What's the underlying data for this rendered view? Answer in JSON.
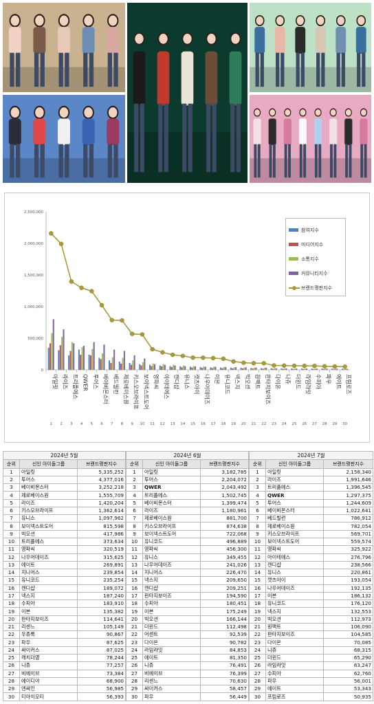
{
  "photos": [
    {
      "name": "photo-group-a",
      "bg": "#c9b28f",
      "people": 5,
      "palette": [
        "#f2d0c4",
        "#7b5a48",
        "#e8c9b8",
        "#6d8fb5",
        "#d8a7a0"
      ]
    },
    {
      "name": "photo-group-b",
      "bg": "#5b86c8",
      "people": 5,
      "palette": [
        "#2d2d3a",
        "#e24848",
        "#f0f0f0",
        "#3b64b3",
        "#9b3b5f"
      ]
    },
    {
      "name": "photo-group-c",
      "bg": "#0d3a2e",
      "people": 5,
      "palette": [
        "#1b1b1b",
        "#c0392b",
        "#e9e4d5",
        "#6b4e35",
        "#2e7d5a"
      ]
    },
    {
      "name": "photo-group-d",
      "bg": "#bde1c7",
      "people": 6,
      "palette": [
        "#3a6e9c",
        "#e8b6a4",
        "#2b2b2b",
        "#d9c7b5",
        "#6f8fb0"
      ]
    },
    {
      "name": "photo-group-e",
      "bg": "#e8a9c3",
      "people": 8,
      "palette": [
        "#f4e1e6",
        "#2b2b2b",
        "#d77aa0",
        "#fafafa",
        "#b0d0f0"
      ]
    }
  ],
  "chart_data": {
    "type": "bar",
    "title": "",
    "xlabel": "",
    "ylabel": "",
    "ylim": [
      0,
      2500000
    ],
    "yticks": [
      0,
      500000,
      1000000,
      1500000,
      2000000,
      2500000
    ],
    "ytick_labels": [
      "0",
      "500,000",
      "1,000,000",
      "1,500,000",
      "2,000,000",
      "2,500,000"
    ],
    "grid": false,
    "legend_position": "top-right",
    "categories": [
      "아일릿",
      "라이즈",
      "트리플에스",
      "QWER",
      "투어스",
      "베이비몬스터",
      "베드빌런",
      "제로베이스원",
      "키스오브라이프",
      "보이넥스트도어",
      "영파씨",
      "아이테에스",
      "캔디샵",
      "유니스",
      "캣츠아이",
      "나우어데이즈",
      "이븐",
      "유니코드",
      "넥스지",
      "빅오션",
      "원팩트",
      "판타지보이즈",
      "다이온",
      "니쥬",
      "더윈드",
      "라임라잇",
      "수피아",
      "파우",
      "에이트",
      "프림로즈"
    ],
    "ranks": [
      1,
      2,
      3,
      4,
      5,
      6,
      7,
      8,
      9,
      10,
      11,
      12,
      13,
      14,
      15,
      16,
      17,
      18,
      19,
      20,
      21,
      22,
      23,
      24,
      25,
      26,
      27,
      28,
      29,
      30
    ],
    "series": [
      {
        "name": "참여지수",
        "kind": "bar",
        "color": "#4f81bd",
        "values": [
          350000,
          310000,
          230000,
          320000,
          240000,
          190000,
          150000,
          130000,
          110000,
          90000,
          80000,
          70000,
          60000,
          55000,
          50000,
          45000,
          40000,
          38000,
          35000,
          33000,
          30000,
          28000,
          26000,
          25000,
          24000,
          23000,
          22000,
          21000,
          20000,
          19000
        ]
      },
      {
        "name": "미디어지수",
        "kind": "bar",
        "color": "#c0504d",
        "values": [
          420000,
          390000,
          300000,
          240000,
          230000,
          170000,
          110000,
          100000,
          80000,
          70000,
          60000,
          55000,
          45000,
          40000,
          35000,
          30000,
          28000,
          26000,
          24000,
          22000,
          20000,
          18000,
          16000,
          15000,
          14000,
          13000,
          12000,
          11000,
          10000,
          9000
        ]
      },
      {
        "name": "소통지수",
        "kind": "bar",
        "color": "#9bbb59",
        "values": [
          580000,
          520000,
          440000,
          360000,
          330000,
          260000,
          200000,
          190000,
          150000,
          120000,
          100000,
          90000,
          80000,
          70000,
          60000,
          55000,
          50000,
          45000,
          40000,
          38000,
          35000,
          33000,
          30000,
          28000,
          26000,
          25000,
          24000,
          23000,
          22000,
          21000
        ]
      },
      {
        "name": "커뮤니티지수",
        "kind": "bar",
        "color": "#8064a2",
        "values": [
          800000,
          640000,
          420000,
          380000,
          440000,
          400000,
          320000,
          300000,
          230000,
          180000,
          90000,
          80000,
          70000,
          60000,
          55000,
          50000,
          48000,
          45000,
          42000,
          40000,
          37000,
          35000,
          25000,
          23000,
          22000,
          21000,
          20000,
          19000,
          18000,
          17000
        ]
      },
      {
        "name": "브랜드평판지수",
        "kind": "line",
        "color": "#a89a3a",
        "values": [
          2158340,
          1991646,
          1396545,
          1297375,
          1244609,
          1022641,
          786912,
          782054,
          569701,
          559574,
          325922,
          276796,
          238566,
          220861,
          193054,
          192135,
          186132,
          176120,
          132553,
          112973,
          106090,
          104585,
          70085,
          68315,
          65290,
          63247,
          62760,
          56001,
          53343,
          50935
        ]
      }
    ]
  },
  "tables": [
    {
      "id": "may",
      "month": "2024년 5월",
      "headers": [
        "순위",
        "신인 아이돌그룹",
        "브랜드평판지수"
      ],
      "rows": [
        [
          "1",
          "아일릿",
          "5,335,252"
        ],
        [
          "2",
          "투어스",
          "4,377,016"
        ],
        [
          "3",
          "베이비몬스터",
          "3,252,218"
        ],
        [
          "4",
          "제로베이스원",
          "1,555,709"
        ],
        [
          "5",
          "라이즈",
          "1,420,204"
        ],
        [
          "6",
          "키스오브라이프",
          "1,362,614"
        ],
        [
          "7",
          "유니스",
          "1,097,962"
        ],
        [
          "8",
          "보이넥스트도어",
          "815,598"
        ],
        [
          "9",
          "빅오션",
          "417,986"
        ],
        [
          "10",
          "트리플에스",
          "373,634"
        ],
        [
          "11",
          "영파씨",
          "320,519"
        ],
        [
          "12",
          "나우어데이즈",
          "315,625"
        ],
        [
          "13",
          "에이트",
          "269,891"
        ],
        [
          "14",
          "지니어스",
          "239,854"
        ],
        [
          "15",
          "유니코드",
          "235,254"
        ],
        [
          "16",
          "캔디샵",
          "189,072"
        ],
        [
          "17",
          "넥스지",
          "187,240"
        ],
        [
          "18",
          "수피아",
          "183,910"
        ],
        [
          "19",
          "이븐",
          "135,382"
        ],
        [
          "20",
          "판타지보이즈",
          "114,641"
        ],
        [
          "21",
          "리센느",
          "105,149"
        ],
        [
          "22",
          "우쥬록",
          "90,867"
        ],
        [
          "23",
          "파우",
          "87,625"
        ],
        [
          "24",
          "싸이커스",
          "87,025"
        ],
        [
          "25",
          "캐치더영",
          "78,244"
        ],
        [
          "26",
          "니쥬",
          "77,257"
        ],
        [
          "27",
          "비에이브",
          "73,384"
        ],
        [
          "28",
          "에이디야",
          "68,900"
        ],
        [
          "29",
          "엔싸인",
          "56,985"
        ],
        [
          "30",
          "티아이오티",
          "56,393"
        ]
      ]
    },
    {
      "id": "jun",
      "month": "2024년 6월",
      "headers": [
        "순위",
        "신인 아이돌그룹",
        "브랜드평판지수"
      ],
      "rows": [
        [
          "1",
          "아일릿",
          "3,182,785"
        ],
        [
          "2",
          "투어스",
          "2,204,072"
        ],
        [
          "3",
          "QWER",
          "2,043,492"
        ],
        [
          "4",
          "트리플에스",
          "1,502,745"
        ],
        [
          "5",
          "베이비몬스터",
          "1,399,474"
        ],
        [
          "6",
          "라이즈",
          "1,180,961"
        ],
        [
          "7",
          "제로베이스원",
          "881,700"
        ],
        [
          "8",
          "키스오브라이프",
          "874,638"
        ],
        [
          "9",
          "보이넥스트도어",
          "722,068"
        ],
        [
          "10",
          "유니코드",
          "496,889"
        ],
        [
          "11",
          "영파씨",
          "456,300"
        ],
        [
          "12",
          "유니스",
          "349,455"
        ],
        [
          "13",
          "나우어데이즈",
          "241,026"
        ],
        [
          "14",
          "지니어스",
          "226,470"
        ],
        [
          "15",
          "넥스지",
          "209,650"
        ],
        [
          "16",
          "캔디샵",
          "209,251"
        ],
        [
          "17",
          "판타지보이즈",
          "194,590"
        ],
        [
          "18",
          "수피아",
          "180,451"
        ],
        [
          "19",
          "이븐",
          "175,249"
        ],
        [
          "20",
          "빅오션",
          "166,144"
        ],
        [
          "21",
          "더윈드",
          "112,498"
        ],
        [
          "22",
          "어센트",
          "92,539"
        ],
        [
          "23",
          "다이온",
          "90,782"
        ],
        [
          "24",
          "라임라잇",
          "84,853"
        ],
        [
          "25",
          "에이트",
          "81,350"
        ],
        [
          "26",
          "니쥬",
          "76,491"
        ],
        [
          "27",
          "비에이브",
          "76,399"
        ],
        [
          "28",
          "리센느",
          "70,630"
        ],
        [
          "29",
          "싸이커스",
          "58,457"
        ],
        [
          "30",
          "파우",
          "56,449"
        ]
      ]
    },
    {
      "id": "jul",
      "month": "2024년 7월",
      "headers": [
        "순위",
        "신인 아이돌그룹",
        "브랜드평판지수"
      ],
      "rows": [
        [
          "1",
          "아일릿",
          "2,158,340"
        ],
        [
          "2",
          "라이즈",
          "1,991,646"
        ],
        [
          "3",
          "트리플에스",
          "1,396,545"
        ],
        [
          "4",
          "QWER",
          "1,297,375"
        ],
        [
          "5",
          "투어스",
          "1,244,609"
        ],
        [
          "6",
          "베이비몬스터",
          "1,022,641"
        ],
        [
          "7",
          "베드빌런",
          "786,912"
        ],
        [
          "8",
          "제로베이스원",
          "782,054"
        ],
        [
          "9",
          "키스오브라이프",
          "569,701"
        ],
        [
          "10",
          "보이넥스트도어",
          "559,574"
        ],
        [
          "11",
          "영파씨",
          "325,922"
        ],
        [
          "12",
          "아이테에스",
          "276,796"
        ],
        [
          "13",
          "캔디샵",
          "238,566"
        ],
        [
          "14",
          "유니스",
          "220,861"
        ],
        [
          "15",
          "캣츠아이",
          "193,054"
        ],
        [
          "16",
          "나우어데이즈",
          "192,135"
        ],
        [
          "17",
          "이븐",
          "186,132"
        ],
        [
          "18",
          "유니코드",
          "176,120"
        ],
        [
          "19",
          "넥스지",
          "132,553"
        ],
        [
          "20",
          "빅오션",
          "112,973"
        ],
        [
          "21",
          "원팩트",
          "106,090"
        ],
        [
          "22",
          "판타지보이즈",
          "104,585"
        ],
        [
          "23",
          "다이온",
          "70,085"
        ],
        [
          "24",
          "니쥬",
          "68,315"
        ],
        [
          "25",
          "더윈드",
          "65,290"
        ],
        [
          "26",
          "라임라잇",
          "63,247"
        ],
        [
          "27",
          "수피아",
          "62,760"
        ],
        [
          "28",
          "파우",
          "56,001"
        ],
        [
          "29",
          "에이트",
          "53,343"
        ],
        [
          "30",
          "프림로즈",
          "50,935"
        ]
      ]
    }
  ]
}
